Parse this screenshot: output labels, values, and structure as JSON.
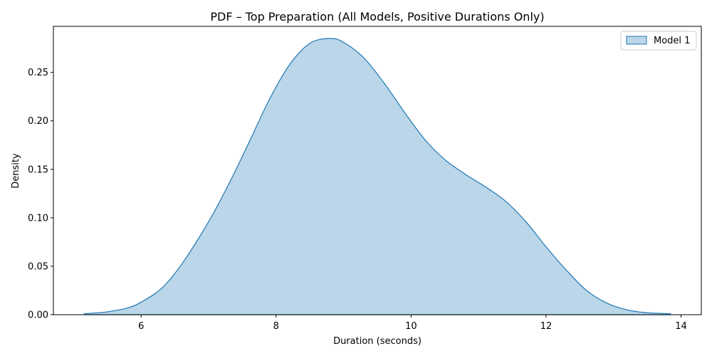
{
  "chart_data": {
    "type": "area",
    "title": "PDF – Top Preparation (All Models, Positive Durations Only)",
    "xlabel": "Duration (seconds)",
    "ylabel": "Density",
    "xlim": [
      4.7,
      14.3
    ],
    "ylim": [
      0,
      0.2975
    ],
    "xticks": [
      6,
      8,
      10,
      12,
      14
    ],
    "xtick_labels": [
      "6",
      "8",
      "10",
      "12",
      "14"
    ],
    "yticks": [
      0.0,
      0.05,
      0.1,
      0.15,
      0.2,
      0.25
    ],
    "ytick_labels": [
      "0.00",
      "0.05",
      "0.10",
      "0.15",
      "0.20",
      "0.25"
    ],
    "grid": false,
    "legend_position": "top-right",
    "series": [
      {
        "name": "Model 1",
        "color": "#1f77b4",
        "fill_color": "#1f77b4",
        "fill_opacity": 0.3,
        "x": [
          5.15,
          5.5,
          5.8,
          6.0,
          6.3,
          6.6,
          7.0,
          7.3,
          7.6,
          7.9,
          8.2,
          8.5,
          8.8,
          9.0,
          9.3,
          9.6,
          9.9,
          10.2,
          10.5,
          10.8,
          11.1,
          11.4,
          11.7,
          12.0,
          12.3,
          12.6,
          12.9,
          13.2,
          13.5,
          13.85
        ],
        "y": [
          0.001,
          0.003,
          0.007,
          0.013,
          0.027,
          0.052,
          0.096,
          0.135,
          0.178,
          0.222,
          0.258,
          0.28,
          0.285,
          0.281,
          0.265,
          0.239,
          0.209,
          0.181,
          0.16,
          0.145,
          0.132,
          0.117,
          0.096,
          0.07,
          0.046,
          0.025,
          0.012,
          0.005,
          0.002,
          0.001
        ]
      }
    ]
  }
}
